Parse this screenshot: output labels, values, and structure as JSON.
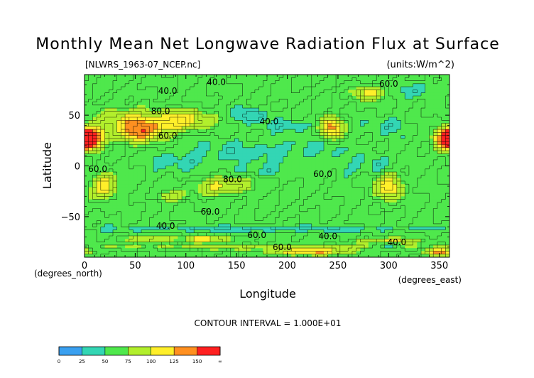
{
  "chart_data": {
    "type": "heatmap",
    "title": "Monthly Mean Net Longwave Radiation Flux at Surface",
    "source_label": "[NLWRS_1963-07_NCEP.nc]",
    "units_label": "(units:W/m^2)",
    "xlabel": "Longitude",
    "ylabel": "Latitude",
    "x_unit_label": "(degrees_east)",
    "y_unit_label": "(degrees_north)",
    "xlim": [
      0,
      360
    ],
    "ylim": [
      -90,
      90
    ],
    "x_ticks": [
      0,
      50,
      100,
      150,
      200,
      250,
      300,
      350
    ],
    "y_ticks": [
      50,
      0,
      -50
    ],
    "x_tick_labels": [
      "0",
      "50",
      "100",
      "150",
      "200",
      "250",
      "300",
      "350"
    ],
    "y_tick_labels": [
      "50",
      "0",
      "−50"
    ],
    "contour_interval_text": "CONTOUR INTERVAL = 1.000E+01",
    "contour_labels": [
      {
        "text": "40.0",
        "lon": 130,
        "lat": 80
      },
      {
        "text": "40.0",
        "lon": 82,
        "lat": 71
      },
      {
        "text": "80.0",
        "lon": 75,
        "lat": 51
      },
      {
        "text": "40.0",
        "lon": 182,
        "lat": 41
      },
      {
        "text": "60.0",
        "lon": 82,
        "lat": 27
      },
      {
        "text": "60.0",
        "lon": 13,
        "lat": -6
      },
      {
        "text": "80.0",
        "lon": 146,
        "lat": -16
      },
      {
        "text": "60.0",
        "lon": 235,
        "lat": -11
      },
      {
        "text": "60.0",
        "lon": 124,
        "lat": -48
      },
      {
        "text": "40.0",
        "lon": 80,
        "lat": -62
      },
      {
        "text": "60.0",
        "lon": 170,
        "lat": -71
      },
      {
        "text": "40.0",
        "lon": 240,
        "lat": -72
      },
      {
        "text": "60.0",
        "lon": 195,
        "lat": -83
      },
      {
        "text": "40.0",
        "lon": 308,
        "lat": -78
      },
      {
        "text": "60.0",
        "lon": 300,
        "lat": 78
      }
    ],
    "colorbar": {
      "bins": [
        {
          "from": 0,
          "to": 25,
          "color": "#3aa0f0"
        },
        {
          "from": 25,
          "to": 50,
          "color": "#33d6b4"
        },
        {
          "from": 50,
          "to": 75,
          "color": "#4fe84c"
        },
        {
          "from": 75,
          "to": 100,
          "color": "#b2ef2c"
        },
        {
          "from": 100,
          "to": 125,
          "color": "#ffef2a"
        },
        {
          "from": 125,
          "to": 150,
          "color": "#ff9020"
        },
        {
          "from": 150,
          "to": null,
          "color": "#ff2020"
        }
      ],
      "tick_labels": [
        "0",
        "25",
        "50",
        "75",
        "100",
        "125",
        "150",
        "∞"
      ]
    },
    "base_value": 60,
    "features": [
      {
        "lon": 5,
        "lat": 28,
        "peak": 160,
        "rlon": 14,
        "rlat": 10
      },
      {
        "lon": 358,
        "lat": 25,
        "peak": 155,
        "rlon": 12,
        "rlat": 10
      },
      {
        "lon": 55,
        "lat": 35,
        "peak": 140,
        "rlon": 24,
        "rlat": 11
      },
      {
        "lon": 95,
        "lat": 45,
        "peak": 115,
        "rlon": 28,
        "rlat": 10
      },
      {
        "lon": 40,
        "lat": 48,
        "peak": 95,
        "rlon": 25,
        "rlat": 10
      },
      {
        "lon": 243,
        "lat": 38,
        "peak": 135,
        "rlon": 11,
        "rlat": 10
      },
      {
        "lon": 165,
        "lat": 50,
        "peak": 35,
        "rlon": 18,
        "rlat": 7
      },
      {
        "lon": 205,
        "lat": 40,
        "peak": 42,
        "rlon": 26,
        "rlat": 6
      },
      {
        "lon": 180,
        "lat": 15,
        "peak": 45,
        "rlon": 85,
        "rlat": 12
      },
      {
        "lon": 95,
        "lat": 5,
        "peak": 45,
        "rlon": 30,
        "rlat": 9
      },
      {
        "lon": 170,
        "lat": -5,
        "peak": 48,
        "rlon": 40,
        "rlat": 6
      },
      {
        "lon": 20,
        "lat": -20,
        "peak": 120,
        "rlon": 12,
        "rlat": 12
      },
      {
        "lon": 135,
        "lat": -20,
        "peak": 105,
        "rlon": 28,
        "rlat": 9
      },
      {
        "lon": 85,
        "lat": -30,
        "peak": 90,
        "rlon": 15,
        "rlat": 5
      },
      {
        "lon": 300,
        "lat": -20,
        "peak": 120,
        "rlon": 12,
        "rlat": 14
      },
      {
        "lon": 290,
        "lat": 0,
        "peak": 40,
        "rlon": 12,
        "rlat": 10
      },
      {
        "lon": 255,
        "lat": -5,
        "peak": 50,
        "rlon": 16,
        "rlat": 10
      },
      {
        "lon": 280,
        "lat": 72,
        "peak": 110,
        "rlon": 14,
        "rlat": 7
      },
      {
        "lon": 330,
        "lat": 75,
        "peak": 40,
        "rlon": 20,
        "rlat": 7
      },
      {
        "lon": 300,
        "lat": 40,
        "peak": 45,
        "rlon": 18,
        "rlat": 10
      },
      {
        "lon": 180,
        "lat": -62,
        "peak": 40,
        "rlon": 180,
        "rlat": 3
      },
      {
        "lon": 180,
        "lat": -80,
        "peak": 85,
        "rlon": 180,
        "rlat": 3
      },
      {
        "lon": 60,
        "lat": -72,
        "peak": 110,
        "rlon": 20,
        "rlat": 3
      },
      {
        "lon": 120,
        "lat": -72,
        "peak": 110,
        "rlon": 25,
        "rlat": 3
      },
      {
        "lon": 300,
        "lat": -74,
        "peak": 105,
        "rlon": 30,
        "rlat": 3
      },
      {
        "lon": 220,
        "lat": -85,
        "peak": 130,
        "rlon": 35,
        "rlat": 3
      },
      {
        "lon": 350,
        "lat": -85,
        "peak": 140,
        "rlon": 15,
        "rlat": 3
      },
      {
        "lon": 300,
        "lat": -78,
        "peak": 10,
        "rlon": 10,
        "rlat": 2
      }
    ]
  }
}
